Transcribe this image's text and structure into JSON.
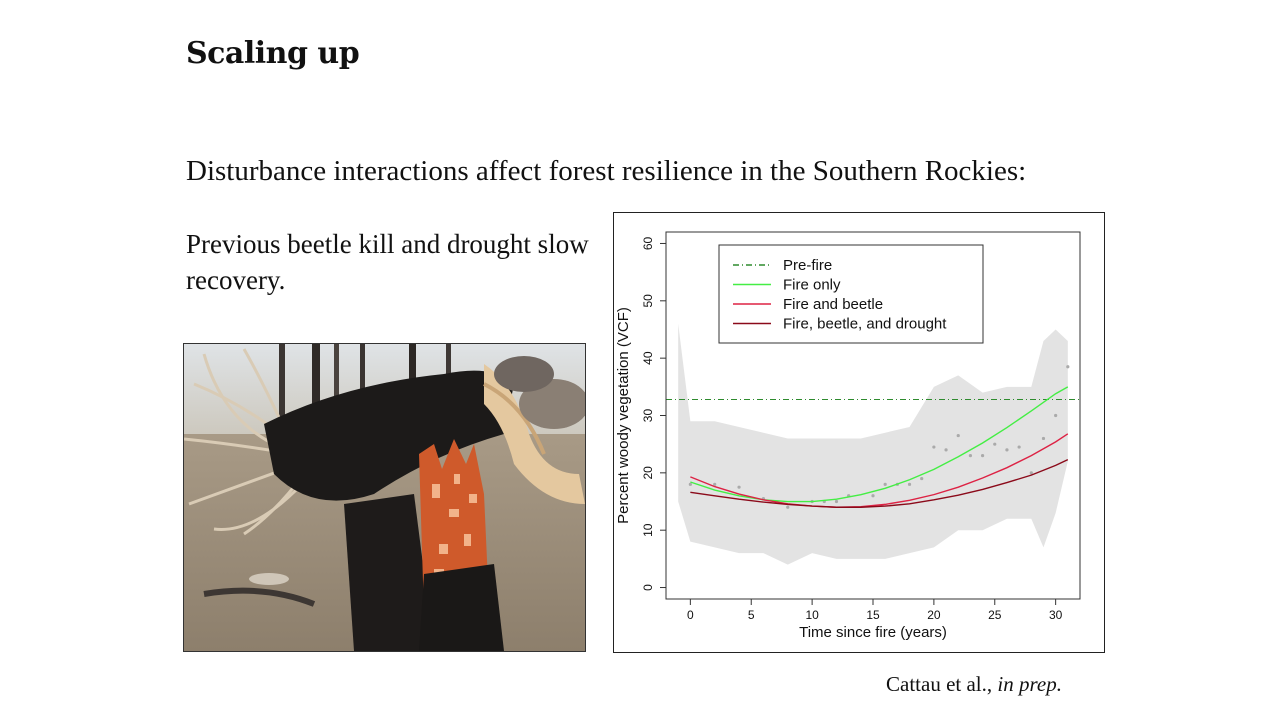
{
  "slide": {
    "title": "Scaling up",
    "subtitle": "Disturbance interactions affect forest resilience in the Southern Rockies:",
    "bullet": "Previous beetle kill and drought slow recovery.",
    "citation_authors": "Cattau et al.,",
    "citation_status": "in prep."
  },
  "photo": {
    "description_icon": "burned-tree-photo"
  },
  "chart_data": {
    "type": "line",
    "xlabel": "Time since fire (years)",
    "ylabel": "Percent woody vegetation (VCF)",
    "xlim": [
      -2,
      32
    ],
    "ylim": [
      -2,
      62
    ],
    "x_ticks": [
      0,
      5,
      10,
      15,
      20,
      25,
      30
    ],
    "y_ticks": [
      0,
      10,
      20,
      30,
      40,
      50,
      60
    ],
    "grid": false,
    "legend_position": "top",
    "colors": {
      "prefire": "#2e8b2e",
      "fire_only": "#44ee44",
      "fire_beetle": "#dd2244",
      "fire_beetle_drought": "#8b0a1a",
      "band": "#e3e3e3",
      "points": "#aaaaaa"
    },
    "series": [
      {
        "name": "Pre-fire",
        "style": "dashdot",
        "x": [
          -2,
          32
        ],
        "values": [
          32.8,
          32.8
        ]
      },
      {
        "name": "Fire only",
        "style": "solid",
        "x": [
          0,
          2,
          4,
          6,
          8,
          10,
          12,
          14,
          16,
          18,
          20,
          22,
          24,
          26,
          28,
          30,
          31
        ],
        "values": [
          18.4,
          17.0,
          16.0,
          15.3,
          15.0,
          15.0,
          15.4,
          16.2,
          17.3,
          18.8,
          20.6,
          22.8,
          25.2,
          27.9,
          30.8,
          33.8,
          35.0
        ]
      },
      {
        "name": "Fire and beetle",
        "style": "solid",
        "x": [
          0,
          2,
          4,
          6,
          8,
          10,
          12,
          14,
          16,
          18,
          20,
          22,
          24,
          26,
          28,
          30,
          31
        ],
        "values": [
          19.3,
          17.6,
          16.3,
          15.3,
          14.6,
          14.2,
          14.0,
          14.1,
          14.5,
          15.2,
          16.2,
          17.5,
          19.1,
          20.9,
          23.0,
          25.4,
          26.8
        ]
      },
      {
        "name": "Fire, beetle, and drought",
        "style": "solid",
        "x": [
          0,
          2,
          4,
          6,
          8,
          10,
          12,
          14,
          16,
          18,
          20,
          22,
          24,
          26,
          28,
          30,
          31
        ],
        "values": [
          16.6,
          16.0,
          15.4,
          14.9,
          14.5,
          14.2,
          14.0,
          14.0,
          14.2,
          14.6,
          15.3,
          16.1,
          17.1,
          18.3,
          19.6,
          21.3,
          22.3
        ]
      }
    ],
    "confidence_band": {
      "x": [
        -1,
        0,
        2,
        4,
        6,
        8,
        10,
        12,
        14,
        16,
        18,
        20,
        22,
        24,
        26,
        28,
        29,
        30,
        31
      ],
      "upper": [
        46,
        29,
        29,
        28,
        27,
        26,
        26,
        26,
        26,
        27,
        28,
        35,
        37,
        34,
        35,
        35,
        43,
        45,
        43
      ],
      "lower": [
        15,
        8,
        7,
        6,
        6,
        4,
        6,
        5,
        5,
        5,
        6,
        7,
        10,
        10,
        12,
        12,
        7,
        13,
        22
      ]
    },
    "points": {
      "x": [
        0,
        2,
        4,
        6,
        8,
        10,
        11,
        12,
        13,
        15,
        16,
        17,
        18,
        19,
        20,
        21,
        22,
        23,
        24,
        25,
        26,
        27,
        28,
        29,
        30,
        31
      ],
      "values": [
        18,
        18,
        17.5,
        15.5,
        14,
        15,
        15,
        15,
        16,
        16,
        18,
        18,
        18,
        19,
        24.5,
        24,
        26.5,
        23,
        23,
        25,
        24,
        24.5,
        20,
        26,
        30,
        38.5
      ]
    }
  }
}
